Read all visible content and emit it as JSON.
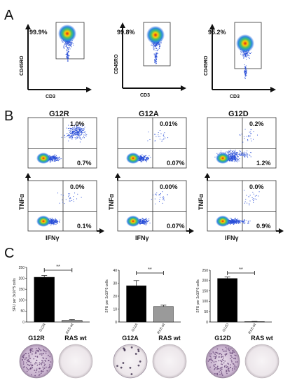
{
  "panels": {
    "a_letter": "A",
    "b_letter": "B",
    "c_letter": "C"
  },
  "panel_a": {
    "plots": [
      {
        "y_label": "CD45RO",
        "x_label": "CD3",
        "gate_pct": "99.9%"
      },
      {
        "y_label": "CD45RO",
        "x_label": "CD3",
        "gate_pct": "99.8%"
      },
      {
        "y_label": "CD45RO",
        "x_label": "CD3",
        "gate_pct": "95.2%"
      }
    ]
  },
  "panel_b": {
    "columns": [
      {
        "title": "G12R",
        "upper": {
          "ur": "1.0%",
          "lr": "0.7%"
        },
        "lower": {
          "ur": "0.0%",
          "lr": "0.1%"
        }
      },
      {
        "title": "G12A",
        "upper": {
          "ur": "0.01%",
          "lr": "0.07%"
        },
        "lower": {
          "ur": "0.00%",
          "lr": "0.07%"
        }
      },
      {
        "title": "G12D",
        "upper": {
          "ur": "0.2%",
          "lr": "1.2%"
        },
        "lower": {
          "ur": "0.0%",
          "lr": "0.9%"
        }
      }
    ],
    "y_label": "TNFα",
    "x_label": "IFNγ"
  },
  "panel_c": {
    "sig_label": "**",
    "wells": [
      {
        "left": "G12R",
        "right": "RAS wt"
      },
      {
        "left": "G12A",
        "right": "RAS wt"
      },
      {
        "left": "G12D",
        "right": "RAS wt"
      }
    ]
  },
  "chart_data": [
    {
      "type": "bar",
      "categories": [
        "G12R",
        "RAS wt"
      ],
      "values": [
        205,
        8
      ],
      "errors": [
        8,
        3
      ],
      "colors": [
        "#000000",
        "#9a9a9a"
      ],
      "ylabel": "SFU per 3x10^5 cells",
      "ylim": [
        0,
        250
      ],
      "yticks": [
        "0",
        "50",
        "100",
        "150",
        "200",
        "250"
      ],
      "significance": "**"
    },
    {
      "type": "bar",
      "categories": [
        "G12A",
        "RAS wt"
      ],
      "values": [
        28,
        12
      ],
      "errors": [
        4,
        1
      ],
      "colors": [
        "#000000",
        "#9a9a9a"
      ],
      "ylabel": "SFU per 3x10^5 cells",
      "ylim": [
        0,
        40
      ],
      "yticks": [
        "0",
        "10",
        "20",
        "30",
        "40"
      ],
      "significance": "**"
    },
    {
      "type": "bar",
      "categories": [
        "G12D",
        "RAS wt"
      ],
      "values": [
        210,
        2
      ],
      "errors": [
        7,
        1
      ],
      "colors": [
        "#000000",
        "#9a9a9a"
      ],
      "ylabel": "SFU per 3x10^5 cells",
      "ylim": [
        0,
        250
      ],
      "yticks": [
        "0",
        "50",
        "100",
        "150",
        "200",
        "250"
      ],
      "significance": "**"
    }
  ]
}
